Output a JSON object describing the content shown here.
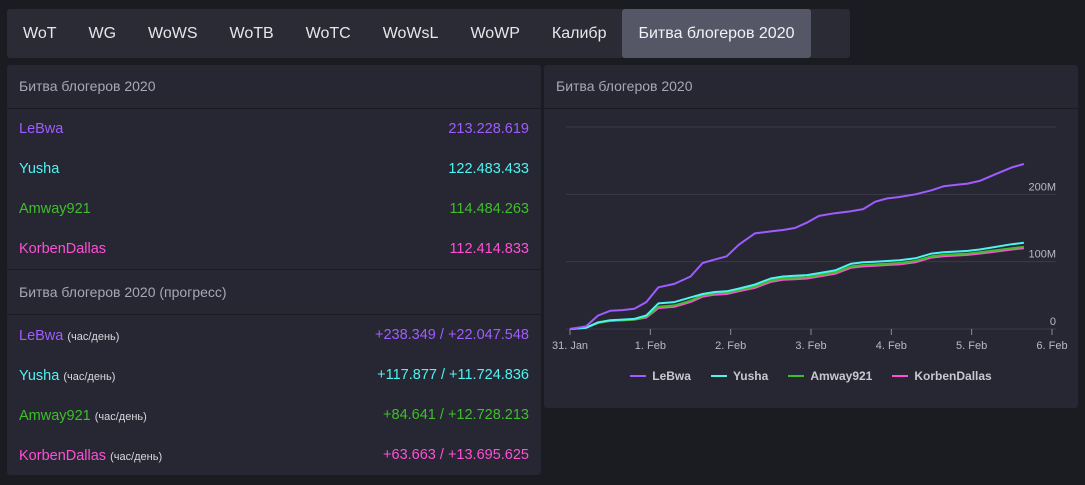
{
  "tabs": [
    "WoT",
    "WG",
    "WoWS",
    "WoTB",
    "WoTC",
    "WoWsL",
    "WoWP",
    "Калибр",
    "Битва блогеров 2020"
  ],
  "active_tab": 8,
  "colors": {
    "lebwa": "#a05cff",
    "yusha": "#4ff3f3",
    "amway": "#3fbf2a",
    "korben": "#ff4fd6"
  },
  "totals": {
    "title": "Битва блогеров 2020",
    "rows": [
      {
        "name": "LeBwa",
        "value": "213.228.619"
      },
      {
        "name": "Yusha",
        "value": "122.483.433"
      },
      {
        "name": "Amway921",
        "value": "114.484.263"
      },
      {
        "name": "KorbenDallas",
        "value": "112.414.833"
      }
    ]
  },
  "progress": {
    "title": "Битва блогеров 2020 (прогресс)",
    "unit": "(час/день)",
    "rows": [
      {
        "name": "LeBwa",
        "value": "+238.349 / +22.047.548"
      },
      {
        "name": "Yusha",
        "value": "+117.877 / +11.724.836"
      },
      {
        "name": "Amway921",
        "value": "+84.641 / +12.728.213"
      },
      {
        "name": "KorbenDallas",
        "value": "+63.663 / +13.695.625"
      }
    ]
  },
  "chart_panel": {
    "title": "Битва блогеров 2020"
  },
  "chart_data": {
    "type": "line",
    "title": "",
    "x_ticks": [
      "31. Jan",
      "1. Feb",
      "2. Feb",
      "3. Feb",
      "4. Feb",
      "5. Feb",
      "6. Feb"
    ],
    "y_ticks": [
      "0",
      "100M",
      "200M"
    ],
    "ylim": [
      0,
      300
    ],
    "x": [
      0,
      0.2,
      0.35,
      0.5,
      0.65,
      0.8,
      0.95,
      1.1,
      1.3,
      1.5,
      1.65,
      1.8,
      1.95,
      2.1,
      2.3,
      2.5,
      2.65,
      2.8,
      2.95,
      3.1,
      3.3,
      3.5,
      3.65,
      3.8,
      3.95,
      4.1,
      4.3,
      4.5,
      4.65,
      4.8,
      4.95,
      5.1,
      5.3,
      5.5,
      5.65
    ],
    "series": [
      {
        "name": "LeBwa",
        "values": [
          0,
          4,
          20,
          27,
          28,
          30,
          40,
          62,
          67,
          78,
          98,
          103,
          108,
          125,
          142,
          145,
          147,
          150,
          158,
          168,
          172,
          175,
          178,
          189,
          194,
          196,
          200,
          206,
          212,
          214,
          216,
          220,
          230,
          240,
          245
        ]
      },
      {
        "name": "Yusha",
        "values": [
          0,
          2,
          10,
          13,
          14,
          15,
          20,
          38,
          40,
          47,
          52,
          55,
          56,
          60,
          66,
          75,
          78,
          79,
          80,
          83,
          87,
          97,
          99,
          100,
          101,
          102,
          105,
          112,
          114,
          115,
          116,
          118,
          122,
          126,
          128
        ]
      },
      {
        "name": "Amway921",
        "values": [
          0,
          2,
          9,
          12,
          13,
          14,
          18,
          33,
          35,
          42,
          50,
          53,
          54,
          58,
          63,
          72,
          75,
          76,
          77,
          80,
          84,
          93,
          95,
          96,
          97,
          98,
          101,
          108,
          110,
          111,
          112,
          114,
          117,
          120,
          122
        ]
      },
      {
        "name": "KorbenDallas",
        "values": [
          0,
          2,
          9,
          12,
          13,
          14,
          17,
          31,
          33,
          40,
          48,
          51,
          52,
          56,
          61,
          70,
          73,
          74,
          75,
          78,
          82,
          91,
          93,
          94,
          95,
          96,
          99,
          106,
          108,
          109,
          110,
          112,
          115,
          118,
          120
        ]
      }
    ],
    "legend": [
      "LeBwa",
      "Yusha",
      "Amway921",
      "KorbenDallas"
    ],
    "grid": true,
    "legend_position": "bottom"
  }
}
